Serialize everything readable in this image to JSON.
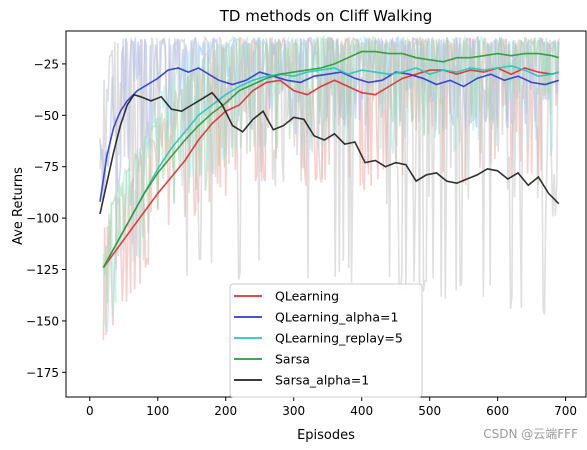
{
  "chart_data": {
    "type": "line",
    "title": "TD methods on Cliff Walking",
    "xlabel": "Episodes",
    "ylabel": "Ave Returns",
    "xlim": [
      -35,
      730
    ],
    "ylim": [
      -187,
      -9
    ],
    "xticks": [
      0,
      100,
      200,
      300,
      400,
      500,
      600,
      700
    ],
    "yticks": [
      -175,
      -150,
      -125,
      -100,
      -75,
      -50,
      -25
    ],
    "legend_position": "lower center",
    "series": [
      {
        "name": "QLearning",
        "color": "#e03030",
        "raw_color": "#f4a8a6",
        "x": [
          20,
          40,
          60,
          80,
          100,
          120,
          140,
          160,
          180,
          200,
          220,
          240,
          260,
          280,
          300,
          320,
          340,
          360,
          380,
          400,
          420,
          440,
          460,
          480,
          500,
          520,
          540,
          560,
          580,
          600,
          620,
          640,
          660,
          680,
          690
        ],
        "y": [
          -124,
          -115,
          -106,
          -97,
          -88,
          -80,
          -72,
          -62,
          -54,
          -48,
          -45,
          -38,
          -34,
          -33,
          -38,
          -40,
          -36,
          -33,
          -36,
          -39,
          -40,
          -36,
          -32,
          -30,
          -28,
          -28,
          -30,
          -28,
          -29,
          -27,
          -30,
          -27,
          -29,
          -30,
          -29
        ],
        "raw_low": [
          -165,
          -150,
          -140,
          -130,
          -120,
          -110,
          -100,
          -100,
          -95,
          -90,
          -85,
          -85,
          -82,
          -80,
          -85,
          -85,
          -82,
          -80,
          -85,
          -90,
          -85,
          -80,
          -80,
          -82,
          -80,
          -80,
          -85,
          -82,
          -80,
          -80,
          -85,
          -80,
          -85,
          -90,
          -85
        ],
        "raw_high": [
          -105,
          -90,
          -80,
          -65,
          -55,
          -45,
          -35,
          -25,
          -15,
          -12,
          -12,
          -12,
          -12,
          -12,
          -12,
          -12,
          -12,
          -12,
          -12,
          -12,
          -12,
          -12,
          -12,
          -12,
          -12,
          -12,
          -12,
          -12,
          -12,
          -12,
          -12,
          -12,
          -12,
          -12,
          -12
        ]
      },
      {
        "name": "QLearning_alpha=1",
        "color": "#2d38d6",
        "raw_color": "#a8b4fa",
        "x": [
          15,
          25,
          35,
          45,
          55,
          70,
          85,
          100,
          115,
          130,
          145,
          160,
          175,
          190,
          210,
          230,
          250,
          270,
          290,
          310,
          330,
          350,
          370,
          390,
          410,
          430,
          450,
          470,
          490,
          510,
          530,
          550,
          570,
          590,
          610,
          630,
          650,
          670,
          690
        ],
        "y": [
          -92,
          -70,
          -56,
          -48,
          -43,
          -38,
          -35,
          -32,
          -28,
          -27,
          -29,
          -27,
          -30,
          -33,
          -35,
          -33,
          -29,
          -31,
          -33,
          -34,
          -31,
          -30,
          -29,
          -32,
          -34,
          -33,
          -29,
          -30,
          -32,
          -35,
          -33,
          -36,
          -32,
          -30,
          -33,
          -31,
          -34,
          -35,
          -33
        ],
        "raw_low": [
          -130,
          -110,
          -95,
          -85,
          -75,
          -70,
          -68,
          -65,
          -62,
          -60,
          -60,
          -58,
          -60,
          -62,
          -60,
          -58,
          -55,
          -56,
          -58,
          -60,
          -58,
          -56,
          -55,
          -58,
          -60,
          -58,
          -55,
          -56,
          -58,
          -60,
          -58,
          -60,
          -58,
          -56,
          -58,
          -56,
          -58,
          -60,
          -58
        ],
        "raw_high": [
          -60,
          -40,
          -25,
          -14,
          -12,
          -12,
          -12,
          -12,
          -12,
          -12,
          -12,
          -12,
          -12,
          -12,
          -12,
          -12,
          -12,
          -12,
          -12,
          -12,
          -12,
          -12,
          -12,
          -12,
          -12,
          -12,
          -12,
          -12,
          -12,
          -12,
          -12,
          -12,
          -12,
          -12,
          -12,
          -12,
          -12,
          -12,
          -12
        ]
      },
      {
        "name": "QLearning_replay=5",
        "color": "#22c9bd",
        "raw_color": "#a4ece4",
        "x": [
          20,
          40,
          60,
          80,
          100,
          120,
          140,
          160,
          180,
          200,
          220,
          240,
          260,
          280,
          300,
          320,
          340,
          360,
          380,
          400,
          420,
          440,
          460,
          480,
          500,
          520,
          540,
          560,
          580,
          600,
          620,
          640,
          660,
          680,
          690
        ],
        "y": [
          -124,
          -112,
          -100,
          -88,
          -76,
          -66,
          -58,
          -50,
          -45,
          -40,
          -36,
          -33,
          -31,
          -30,
          -31,
          -29,
          -28,
          -27,
          -30,
          -28,
          -29,
          -30,
          -29,
          -27,
          -30,
          -28,
          -29,
          -27,
          -28,
          -27,
          -26,
          -28,
          -31,
          -30,
          -29
        ],
        "raw_low": [
          -160,
          -145,
          -130,
          -115,
          -100,
          -95,
          -90,
          -85,
          -80,
          -78,
          -75,
          -72,
          -70,
          -70,
          -72,
          -70,
          -68,
          -66,
          -70,
          -68,
          -70,
          -70,
          -68,
          -66,
          -70,
          -68,
          -70,
          -66,
          -68,
          -66,
          -65,
          -68,
          -72,
          -70,
          -68
        ],
        "raw_high": [
          -100,
          -85,
          -70,
          -55,
          -40,
          -28,
          -20,
          -14,
          -12,
          -12,
          -12,
          -12,
          -12,
          -12,
          -12,
          -12,
          -12,
          -12,
          -12,
          -12,
          -12,
          -12,
          -12,
          -12,
          -12,
          -12,
          -12,
          -12,
          -12,
          -12,
          -12,
          -12,
          -12,
          -12,
          -12
        ]
      },
      {
        "name": "Sarsa",
        "color": "#2c9a35",
        "raw_color": "#a8d6ac",
        "x": [
          20,
          40,
          60,
          80,
          100,
          120,
          140,
          160,
          180,
          200,
          220,
          240,
          260,
          280,
          300,
          320,
          340,
          360,
          380,
          400,
          420,
          440,
          460,
          480,
          500,
          520,
          540,
          560,
          580,
          600,
          620,
          640,
          660,
          680,
          690
        ],
        "y": [
          -124,
          -112,
          -100,
          -88,
          -78,
          -70,
          -62,
          -55,
          -49,
          -44,
          -38,
          -35,
          -32,
          -30,
          -29,
          -28,
          -27,
          -25,
          -22,
          -19,
          -19,
          -20,
          -20,
          -22,
          -23,
          -24,
          -22,
          -22,
          -21,
          -20,
          -21,
          -20,
          -20,
          -21,
          -22
        ],
        "raw_low": [
          -155,
          -140,
          -125,
          -115,
          -105,
          -100,
          -95,
          -90,
          -85,
          -80,
          -75,
          -72,
          -70,
          -68,
          -66,
          -64,
          -62,
          -60,
          -58,
          -56,
          -56,
          -58,
          -58,
          -60,
          -60,
          -62,
          -60,
          -60,
          -58,
          -58,
          -58,
          -58,
          -58,
          -58,
          -60
        ],
        "raw_high": [
          -100,
          -85,
          -72,
          -60,
          -50,
          -40,
          -32,
          -25,
          -18,
          -14,
          -12,
          -12,
          -12,
          -12,
          -12,
          -12,
          -12,
          -12,
          -12,
          -12,
          -12,
          -12,
          -12,
          -12,
          -12,
          -12,
          -12,
          -12,
          -12,
          -12,
          -12,
          -12,
          -12,
          -12,
          -12
        ]
      },
      {
        "name": "Sarsa_alpha=1",
        "color": "#1f1f1f",
        "raw_color": "#c4c4c4",
        "x": [
          15,
          25,
          35,
          45,
          55,
          65,
          75,
          90,
          105,
          120,
          135,
          150,
          165,
          180,
          195,
          210,
          225,
          240,
          255,
          270,
          285,
          300,
          315,
          330,
          345,
          360,
          375,
          390,
          405,
          420,
          435,
          450,
          465,
          480,
          495,
          510,
          525,
          540,
          555,
          570,
          585,
          600,
          615,
          630,
          645,
          660,
          675,
          690
        ],
        "y": [
          -98,
          -83,
          -68,
          -55,
          -45,
          -40,
          -41,
          -43,
          -41,
          -47,
          -48,
          -45,
          -42,
          -39,
          -45,
          -55,
          -58,
          -52,
          -48,
          -57,
          -55,
          -51,
          -52,
          -60,
          -62,
          -59,
          -64,
          -63,
          -73,
          -72,
          -75,
          -73,
          -74,
          -82,
          -79,
          -78,
          -82,
          -83,
          -81,
          -79,
          -76,
          -77,
          -81,
          -78,
          -84,
          -80,
          -88,
          -93
        ],
        "raw_low": [
          -150,
          -140,
          -130,
          -120,
          -115,
          -120,
          -125,
          -130,
          -125,
          -130,
          -135,
          -130,
          -125,
          -130,
          -128,
          -132,
          -130,
          -125,
          -128,
          -132,
          -128,
          -130,
          -132,
          -130,
          -133,
          -132,
          -130,
          -135,
          -138,
          -135,
          -138,
          -136,
          -138,
          -140,
          -138,
          -140,
          -140,
          -142,
          -140,
          -138,
          -140,
          -142,
          -145,
          -142,
          -148,
          -150,
          -155,
          -158
        ],
        "raw_high": [
          -40,
          -25,
          -12,
          -12,
          -12,
          -12,
          -12,
          -12,
          -12,
          -12,
          -12,
          -12,
          -12,
          -12,
          -12,
          -12,
          -12,
          -12,
          -12,
          -12,
          -12,
          -12,
          -12,
          -12,
          -12,
          -12,
          -12,
          -12,
          -12,
          -12,
          -12,
          -12,
          -12,
          -12,
          -12,
          -12,
          -12,
          -12,
          -12,
          -12,
          -12,
          -12,
          -12,
          -12,
          -12,
          -12,
          -12,
          -12
        ]
      }
    ]
  },
  "watermark": "CSDN @云端FFF"
}
